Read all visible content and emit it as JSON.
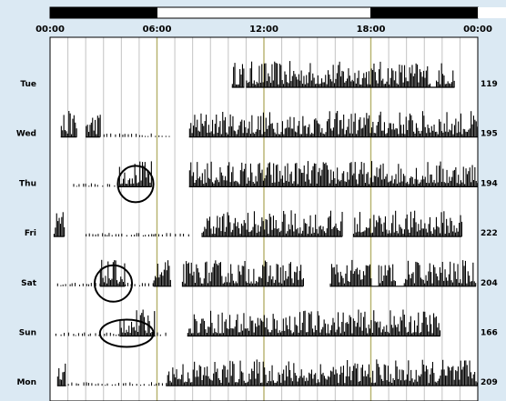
{
  "chart_data": {
    "type": "bar",
    "title": "",
    "xlabel": "",
    "ylabel": "",
    "x_ticks": [
      "00:00",
      "06:00",
      "12:00",
      "18:00",
      "00:00"
    ],
    "x_range_hours": [
      0,
      24
    ],
    "day_night_bar": [
      {
        "from": 0,
        "to": 6,
        "color": "#000000"
      },
      {
        "from": 6,
        "to": 18,
        "color": "#ffffff"
      },
      {
        "from": 18,
        "to": 24,
        "color": "#000000"
      }
    ],
    "rows": [
      {
        "day": "Tue",
        "total": "119",
        "active": [
          [
            10.2,
            10.9
          ],
          [
            11.0,
            22.7
          ]
        ],
        "sparse": [],
        "gaps": [
          [
            21.3,
            21.6
          ]
        ]
      },
      {
        "day": "Wed",
        "total": "195",
        "active": [
          [
            0.6,
            1.5
          ],
          [
            2.0,
            2.8
          ],
          [
            7.8,
            24.0
          ]
        ],
        "sparse": [
          [
            3.0,
            6.7
          ]
        ],
        "gaps": []
      },
      {
        "day": "Thu",
        "total": "194",
        "active": [
          [
            3.8,
            5.7
          ],
          [
            7.8,
            24.0
          ]
        ],
        "sparse": [
          [
            1.3,
            3.8
          ]
        ],
        "gaps": []
      },
      {
        "day": "Fri",
        "total": "222",
        "active": [
          [
            0.2,
            0.8
          ],
          [
            8.5,
            16.4
          ],
          [
            17.0,
            23.1
          ]
        ],
        "sparse": [
          [
            2.0,
            7.8
          ]
        ],
        "gaps": []
      },
      {
        "day": "Sat",
        "total": "204",
        "active": [
          [
            2.8,
            4.2
          ],
          [
            5.8,
            6.8
          ],
          [
            7.4,
            14.2
          ],
          [
            15.7,
            23.9
          ]
        ],
        "sparse": [
          [
            0.4,
            2.8
          ],
          [
            4.2,
            5.8
          ]
        ],
        "gaps": [
          [
            18.0,
            18.4
          ],
          [
            19.4,
            19.8
          ]
        ]
      },
      {
        "day": "Sun",
        "total": "166",
        "active": [
          [
            3.9,
            5.9
          ],
          [
            7.7,
            21.9
          ]
        ],
        "sparse": [
          [
            0.3,
            3.9
          ],
          [
            6.0,
            6.5
          ]
        ],
        "gaps": []
      },
      {
        "day": "Mon",
        "total": "209",
        "active": [
          [
            0.4,
            0.9
          ],
          [
            6.5,
            24.0
          ]
        ],
        "sparse": [
          [
            1.0,
            6.5
          ]
        ],
        "gaps": []
      }
    ],
    "annotations": [
      {
        "type": "circle",
        "row": "Thu",
        "hours": [
          3.8,
          5.8
        ]
      },
      {
        "type": "circle",
        "row": "Sat",
        "hours": [
          2.5,
          4.6
        ]
      },
      {
        "type": "circle",
        "row": "Sun",
        "hours": [
          2.8,
          5.8
        ]
      }
    ],
    "grid": true,
    "colors": {
      "background": "#dbe9f3",
      "major_grid": "#b6b16c",
      "minor_grid": "#c3c3c3",
      "bars": "#000000",
      "plot_panel": "#ffffff",
      "border": "#000000"
    }
  }
}
